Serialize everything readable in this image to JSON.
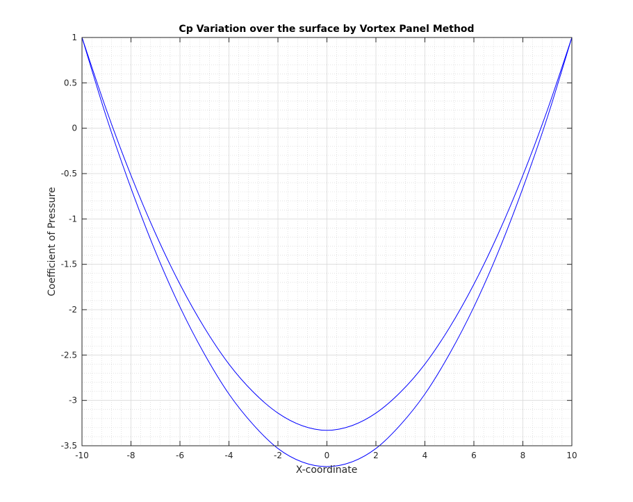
{
  "chart_data": {
    "type": "line",
    "title": "Cp Variation over the surface by Vortex Panel Method",
    "xlabel": "X-coordinate",
    "ylabel": "Coefficient of Pressure",
    "xlim": [
      -10,
      10
    ],
    "ylim": [
      -3.5,
      1
    ],
    "xticks": [
      -10,
      -8,
      -6,
      -4,
      -2,
      0,
      2,
      4,
      6,
      8,
      10
    ],
    "yticks": [
      -3.5,
      -3,
      -2.5,
      -2,
      -1.5,
      -1,
      -0.5,
      0,
      0.5,
      1
    ],
    "grid": true,
    "minor_grid": true,
    "line_color": "#0000ff",
    "series": [
      {
        "x": [
          -10,
          -9,
          -8,
          -7,
          -6,
          -5,
          -4,
          -3,
          -2,
          -1,
          0,
          1,
          2,
          3,
          4,
          5,
          6,
          7,
          8,
          9,
          10
        ],
        "y": [
          1,
          0.2,
          -0.52,
          -1.16,
          -1.72,
          -2.2,
          -2.6,
          -2.91,
          -3.14,
          -3.28,
          -3.33,
          -3.28,
          -3.14,
          -2.91,
          -2.6,
          -2.2,
          -1.72,
          -1.16,
          -0.52,
          0.2,
          1
        ]
      },
      {
        "x": [
          -10,
          -9,
          -8,
          -7,
          -6,
          -5,
          -4,
          -3,
          -2,
          -1,
          0,
          1,
          2,
          3,
          4,
          5,
          6,
          7,
          8,
          9,
          10
        ],
        "y": [
          1,
          0.12,
          -0.66,
          -1.36,
          -1.97,
          -2.49,
          -2.93,
          -3.27,
          -3.53,
          -3.68,
          -3.73,
          -3.68,
          -3.53,
          -3.27,
          -2.93,
          -2.49,
          -1.97,
          -1.36,
          -0.66,
          0.12,
          1
        ]
      }
    ]
  }
}
